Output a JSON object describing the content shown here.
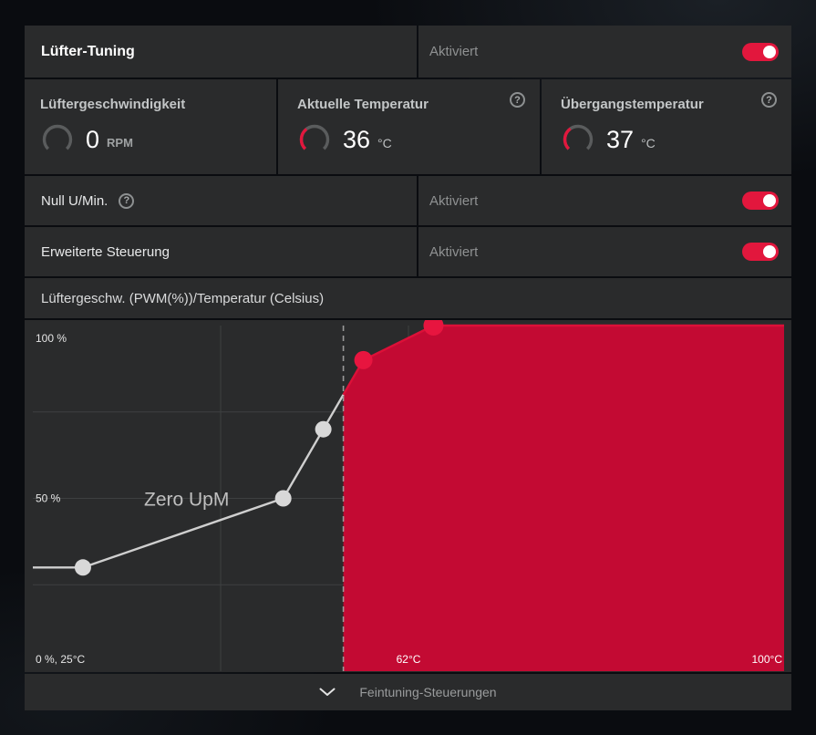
{
  "colors": {
    "accent_red": "#e2173d",
    "fill_red": "#c30a33",
    "line_red": "#dc1038",
    "dot_red": "#e7153f",
    "curve_gray": "#cfcfcf",
    "dot_gray": "#d8d8d8",
    "grid": "#3e4041",
    "dashed": "#9b9b9b",
    "gauge_track": "#5a5c5d",
    "panel_bg": "#2a2b2c"
  },
  "icons": {
    "help": "?",
    "chevron": "chevron-down"
  },
  "header": {
    "title": "Lüfter-Tuning",
    "status": "Aktiviert",
    "toggle_on": true
  },
  "gauges": [
    {
      "label": "Lüftergeschwindigkeit",
      "value": "0",
      "unit": "RPM",
      "fraction": 0,
      "has_help": false
    },
    {
      "label": "Aktuelle Temperatur",
      "value": "36",
      "unit": "°C",
      "fraction": 0.36,
      "has_help": true
    },
    {
      "label": "Übergangstemperatur",
      "value": "37",
      "unit": "°C",
      "fraction": 0.37,
      "has_help": true
    }
  ],
  "toggles": [
    {
      "label": "Null U/Min.",
      "status": "Aktiviert",
      "has_help": true,
      "on": true
    },
    {
      "label": "Erweiterte Steuerung",
      "status": "Aktiviert",
      "has_help": false,
      "on": true
    }
  ],
  "chart_data": {
    "type": "area",
    "title": "Lüftergeschw. (PWM(%))/Temperatur (Celsius)",
    "xlim": [
      25,
      100
    ],
    "ylim": [
      0,
      100
    ],
    "grid": true,
    "points": [
      {
        "temp": 30,
        "pwm": 30
      },
      {
        "temp": 50,
        "pwm": 50
      },
      {
        "temp": 54,
        "pwm": 70
      },
      {
        "temp": 58,
        "pwm": 90
      },
      {
        "temp": 65,
        "pwm": 100
      }
    ],
    "zero_rpm_boundary_temp": 56,
    "zero_rpm_label": "Zero UpM",
    "y_tick_labels": [
      "100 %",
      "50 %",
      "0 %, 25°C"
    ],
    "x_tick_labels": [
      "62°C",
      "100°C"
    ],
    "legend": "none"
  },
  "footer": {
    "label": "Feintuning-Steuerungen"
  }
}
